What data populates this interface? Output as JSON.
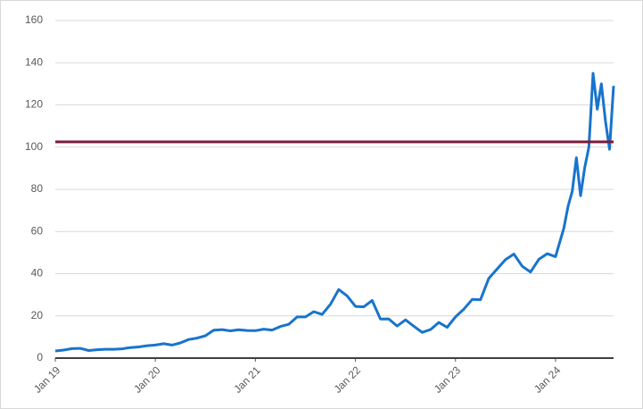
{
  "chart_data": {
    "type": "line",
    "x": [
      2019.0,
      2019.083,
      2019.167,
      2019.25,
      2019.333,
      2019.417,
      2019.5,
      2019.583,
      2019.667,
      2019.75,
      2019.833,
      2019.917,
      2020.0,
      2020.083,
      2020.167,
      2020.25,
      2020.333,
      2020.417,
      2020.5,
      2020.583,
      2020.667,
      2020.75,
      2020.833,
      2020.917,
      2021.0,
      2021.083,
      2021.167,
      2021.25,
      2021.333,
      2021.417,
      2021.5,
      2021.583,
      2021.667,
      2021.75,
      2021.833,
      2021.917,
      2022.0,
      2022.083,
      2022.167,
      2022.25,
      2022.333,
      2022.417,
      2022.5,
      2022.583,
      2022.667,
      2022.75,
      2022.833,
      2022.917,
      2023.0,
      2023.083,
      2023.167,
      2023.25,
      2023.333,
      2023.417,
      2023.5,
      2023.583,
      2023.667,
      2023.75,
      2023.833,
      2023.917,
      2024.0,
      2024.083,
      2024.125,
      2024.167,
      2024.208,
      2024.25,
      2024.292,
      2024.333,
      2024.375,
      2024.417,
      2024.458,
      2024.5,
      2024.54,
      2024.58
    ],
    "values": [
      3.4,
      3.8,
      4.5,
      4.6,
      3.6,
      4.0,
      4.2,
      4.2,
      4.4,
      5.0,
      5.3,
      5.9,
      6.2,
      6.8,
      6.2,
      7.2,
      8.8,
      9.5,
      10.6,
      13.2,
      13.5,
      12.9,
      13.4,
      13.1,
      13.0,
      13.7,
      13.3,
      15.0,
      16.0,
      19.5,
      19.5,
      22.0,
      20.7,
      25.5,
      32.5,
      29.5,
      24.5,
      24.3,
      27.3,
      18.5,
      18.6,
      15.2,
      18.1,
      15.1,
      12.2,
      13.5,
      16.9,
      14.6,
      19.5,
      23.2,
      27.8,
      27.7,
      37.8,
      42.3,
      46.7,
      49.3,
      43.5,
      40.8,
      46.8,
      49.5,
      48.1,
      61.5,
      72,
      79.1,
      95,
      77,
      90.4,
      100,
      135,
      118,
      130,
      112,
      99,
      129
    ],
    "color": "#1874cd",
    "hline": 102.5,
    "hline_color": "#7b1c3a",
    "xlim": [
      2019,
      2024.58
    ],
    "xticks": [
      {
        "value": 2019,
        "label": "Jan 19"
      },
      {
        "value": 2020,
        "label": "Jan 20"
      },
      {
        "value": 2021,
        "label": "Jan 21"
      },
      {
        "value": 2022,
        "label": "Jan 22"
      },
      {
        "value": 2023,
        "label": "Jan 23"
      },
      {
        "value": 2024,
        "label": "Jan 24"
      }
    ],
    "ylim": [
      0,
      160
    ],
    "yticks": [
      0,
      20,
      40,
      60,
      80,
      100,
      120,
      140,
      160
    ],
    "grid": true
  }
}
